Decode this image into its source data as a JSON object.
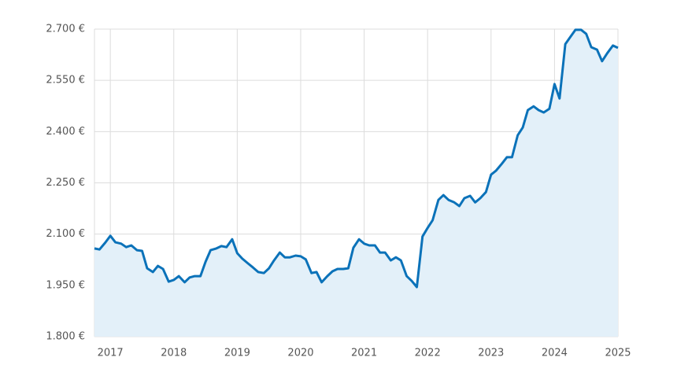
{
  "chart_data": {
    "type": "area",
    "x": [
      2016.75,
      2016.83,
      2016.92,
      2017,
      2017.08,
      2017.17,
      2017.25,
      2017.33,
      2017.42,
      2017.5,
      2017.58,
      2017.67,
      2017.75,
      2017.83,
      2017.92,
      2018,
      2018.08,
      2018.17,
      2018.25,
      2018.33,
      2018.42,
      2018.5,
      2018.58,
      2018.67,
      2018.75,
      2018.83,
      2018.92,
      2019,
      2019.08,
      2019.17,
      2019.25,
      2019.33,
      2019.42,
      2019.5,
      2019.58,
      2019.67,
      2019.75,
      2019.83,
      2019.92,
      2020,
      2020.08,
      2020.17,
      2020.25,
      2020.33,
      2020.42,
      2020.5,
      2020.58,
      2020.67,
      2020.75,
      2020.83,
      2020.92,
      2021,
      2021.08,
      2021.17,
      2021.25,
      2021.33,
      2021.42,
      2021.5,
      2021.58,
      2021.67,
      2021.75,
      2021.83,
      2021.92,
      2022,
      2022.08,
      2022.17,
      2022.25,
      2022.33,
      2022.42,
      2022.5,
      2022.58,
      2022.67,
      2022.75,
      2022.83,
      2022.92,
      2023,
      2023.08,
      2023.17,
      2023.25,
      2023.33,
      2023.42,
      2023.5,
      2023.58,
      2023.67,
      2023.75,
      2023.83,
      2023.92,
      2024,
      2024.08,
      2024.17,
      2024.25,
      2024.33,
      2024.42,
      2024.5,
      2024.58,
      2024.67,
      2024.75,
      2024.83,
      2024.92,
      2025
    ],
    "series": [
      {
        "color": "#0b72b9",
        "fill": "#e3f0f9",
        "values": [
          2058,
          2055,
          2075,
          2095,
          2076,
          2072,
          2062,
          2067,
          2053,
          2051,
          2000,
          1989,
          2007,
          1998,
          1961,
          1966,
          1977,
          1959,
          1973,
          1977,
          1977,
          2019,
          2053,
          2058,
          2065,
          2062,
          2085,
          2044,
          2028,
          2014,
          2002,
          1989,
          1986,
          2000,
          2023,
          2046,
          2032,
          2032,
          2037,
          2035,
          2026,
          1986,
          1989,
          1959,
          1977,
          1991,
          1998,
          1998,
          2000,
          2060,
          2085,
          2072,
          2067,
          2067,
          2046,
          2046,
          2023,
          2032,
          2023,
          1977,
          1963,
          1945,
          2093,
          2118,
          2141,
          2200,
          2214,
          2200,
          2193,
          2182,
          2205,
          2212,
          2193,
          2205,
          2223,
          2274,
          2286,
          2306,
          2325,
          2325,
          2389,
          2412,
          2463,
          2474,
          2463,
          2456,
          2467,
          2539,
          2497,
          2656,
          2677,
          2698,
          2698,
          2686,
          2647,
          2640,
          2606,
          2629,
          2652,
          2645
        ]
      }
    ],
    "xlim": [
      2016.75,
      2025
    ],
    "xticks": [
      2017,
      2018,
      2019,
      2020,
      2021,
      2022,
      2023,
      2024,
      2025
    ],
    "ylim": [
      1800,
      2700
    ],
    "yticks": [
      {
        "value": 1800,
        "label": "1.800 €"
      },
      {
        "value": 1950,
        "label": "1.950 €"
      },
      {
        "value": 2100,
        "label": "2.100 €"
      },
      {
        "value": 2250,
        "label": "2.250 €"
      },
      {
        "value": 2400,
        "label": "2.400 €"
      },
      {
        "value": 2550,
        "label": "2.550 €"
      },
      {
        "value": 2700,
        "label": "2.700 €"
      }
    ],
    "grid": true
  }
}
